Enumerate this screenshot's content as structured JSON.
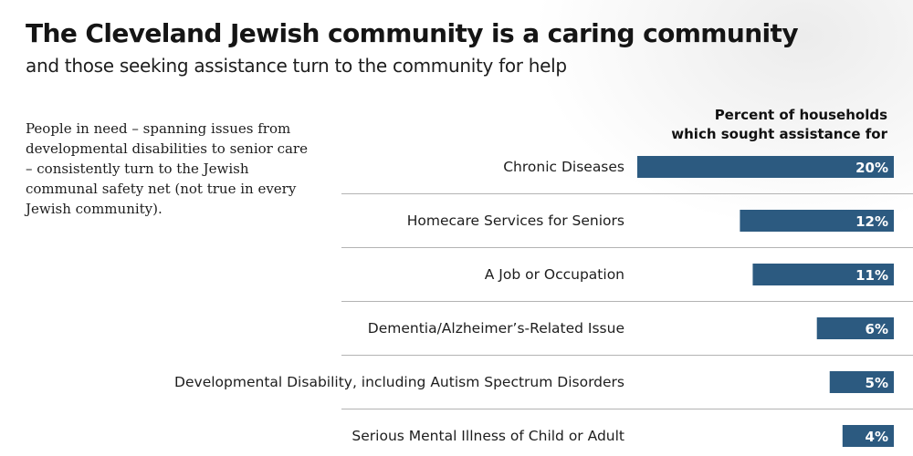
{
  "title": "The Cleveland Jewish community is a caring community",
  "subtitle": "and those seeking assistance turn to the community for help",
  "body_text": "People in need – spanning issues from developmental disabilities to senior care – consistently turn to the Jewish communal safety net (not true in every Jewish community).",
  "chart_heading": [
    "Percent of households",
    "which sought assistance for"
  ],
  "colors": {
    "bar": "#2c5a80",
    "divider": "#b3b3b3"
  },
  "chart_data": {
    "type": "bar",
    "orientation": "horizontal",
    "title": "",
    "categories": [
      "Chronic Diseases",
      "Homecare Services for Seniors",
      "A Job or Occupation",
      "Dementia/Alzheimer’s-Related Issue",
      "Developmental Disability, including Autism Spectrum Disorders",
      "Serious Mental Illness of Child or Adult"
    ],
    "values": [
      20,
      12,
      11,
      6,
      5,
      4
    ],
    "value_labels": [
      "20%",
      "12%",
      "11%",
      "6%",
      "5%",
      "4%"
    ],
    "unit": "%",
    "xlim": [
      0,
      20
    ],
    "grid": false,
    "legend": "none"
  }
}
